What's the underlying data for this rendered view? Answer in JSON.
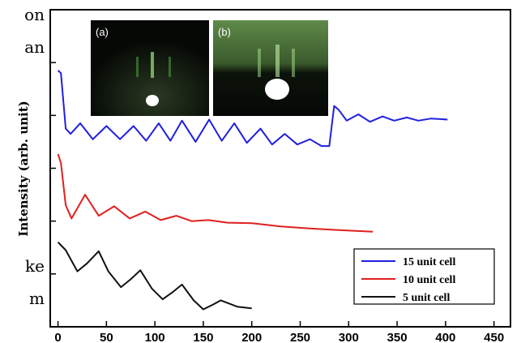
{
  "margin_text": [
    "on",
    "an",
    "ke",
    "m"
  ],
  "chart_data": {
    "type": "line",
    "ylabel": "Intensity (arb. unit)",
    "xlim": [
      -8,
      467
    ],
    "xticks": [
      0,
      50,
      100,
      150,
      200,
      250,
      300,
      350,
      400,
      450
    ],
    "ylim": [
      0,
      6
    ],
    "yticks": [
      1,
      2,
      3,
      4,
      5
    ],
    "ytick_labels": false,
    "legend": "lower right",
    "insets": [
      "(a)",
      "(b)"
    ],
    "series": [
      {
        "name": "15 unit cell",
        "color": "#1f1fe0",
        "x": [
          0,
          3,
          8,
          13,
          23,
          36,
          50,
          64,
          78,
          91,
          104,
          116,
          128,
          142,
          156,
          169,
          182,
          195,
          209,
          221,
          234,
          247,
          260,
          272,
          280,
          285,
          290,
          298,
          310,
          322,
          335,
          347,
          360,
          372,
          385,
          395,
          402
        ],
        "values": [
          4.85,
          4.8,
          3.75,
          3.65,
          3.85,
          3.55,
          3.8,
          3.55,
          3.8,
          3.52,
          3.85,
          3.52,
          3.9,
          3.5,
          3.92,
          3.52,
          3.85,
          3.48,
          3.75,
          3.45,
          3.65,
          3.45,
          3.55,
          3.42,
          3.42,
          4.18,
          4.1,
          3.9,
          4.02,
          3.88,
          3.98,
          3.9,
          3.96,
          3.9,
          3.94,
          3.93,
          3.92
        ]
      },
      {
        "name": "10 unit cell",
        "color": "#e01f1f",
        "x": [
          0,
          3,
          8,
          14,
          28,
          42,
          58,
          74,
          90,
          106,
          122,
          138,
          155,
          175,
          200,
          230,
          260,
          290,
          325
        ],
        "values": [
          3.27,
          3.1,
          2.3,
          2.05,
          2.5,
          2.1,
          2.28,
          2.05,
          2.18,
          2.02,
          2.1,
          2.0,
          2.02,
          1.97,
          1.96,
          1.9,
          1.86,
          1.83,
          1.8
        ]
      },
      {
        "name": "5 unit cell",
        "color": "#111111",
        "x": [
          0,
          8,
          20,
          30,
          42,
          52,
          65,
          75,
          85,
          97,
          108,
          118,
          128,
          140,
          150,
          160,
          168,
          185,
          200
        ],
        "values": [
          1.6,
          1.45,
          1.05,
          1.2,
          1.43,
          1.05,
          0.75,
          0.9,
          1.07,
          0.72,
          0.52,
          0.65,
          0.8,
          0.5,
          0.33,
          0.42,
          0.5,
          0.38,
          0.35
        ]
      }
    ]
  }
}
